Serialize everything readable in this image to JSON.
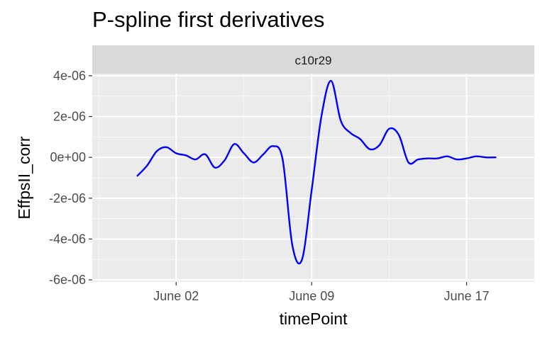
{
  "chart_data": {
    "type": "line",
    "title": "P-spline first derivatives",
    "facet_label": "c10r29",
    "xlabel": "timePoint",
    "ylabel": "EffpsII_corr",
    "x_ticks": [
      "June 02",
      "June 09",
      "June 17"
    ],
    "y_ticks": [
      "4e-06",
      "2e-06",
      "0e+00",
      "-2e-06",
      "-4e-06",
      "-6e-06"
    ],
    "xlim": [
      "2021-05-28T16:00",
      "2021-06-20T12:00"
    ],
    "ylim": [
      -6.1e-06,
      4.1e-06
    ],
    "grid": true,
    "series": [
      {
        "color": "#0000ff",
        "x": [
          "2021-05-31T00:00",
          "2021-05-31T12:00",
          "2021-06-01T00:00",
          "2021-06-01T12:00",
          "2021-06-02T00:00",
          "2021-06-02T12:00",
          "2021-06-03T00:00",
          "2021-06-03T12:00",
          "2021-06-04T00:00",
          "2021-06-04T12:00",
          "2021-06-05T00:00",
          "2021-06-05T12:00",
          "2021-06-06T00:00",
          "2021-06-06T12:00",
          "2021-06-07T00:00",
          "2021-06-07T12:00",
          "2021-06-08T00:00",
          "2021-06-08T12:00",
          "2021-06-09T00:00",
          "2021-06-09T12:00",
          "2021-06-10T00:00",
          "2021-06-10T12:00",
          "2021-06-11T00:00",
          "2021-06-11T12:00",
          "2021-06-12T00:00",
          "2021-06-12T12:00",
          "2021-06-13T00:00",
          "2021-06-13T12:00",
          "2021-06-14T00:00",
          "2021-06-14T12:00",
          "2021-06-15T00:00",
          "2021-06-15T12:00",
          "2021-06-16T00:00",
          "2021-06-16T12:00",
          "2021-06-17T00:00",
          "2021-06-17T12:00",
          "2021-06-18T00:00",
          "2021-06-18T12:00"
        ],
        "values": [
          -9e-07,
          -4e-07,
          3e-07,
          5e-07,
          2e-07,
          1e-07,
          -1e-07,
          1.5e-07,
          -5e-07,
          -1.5e-07,
          6.5e-07,
          2e-07,
          -2.5e-07,
          1.5e-07,
          5.5e-07,
          -1e-07,
          -4.3e-06,
          -5e-06,
          -1.6e-06,
          2e-06,
          3.75e-06,
          1.8e-06,
          1.2e-06,
          9e-07,
          4e-07,
          6e-07,
          1.4e-06,
          1.1e-06,
          -2.5e-07,
          -1e-07,
          -5e-08,
          -5e-08,
          5e-08,
          -1e-07,
          -5e-08,
          5e-08,
          0.0,
          0.0
        ]
      }
    ]
  }
}
